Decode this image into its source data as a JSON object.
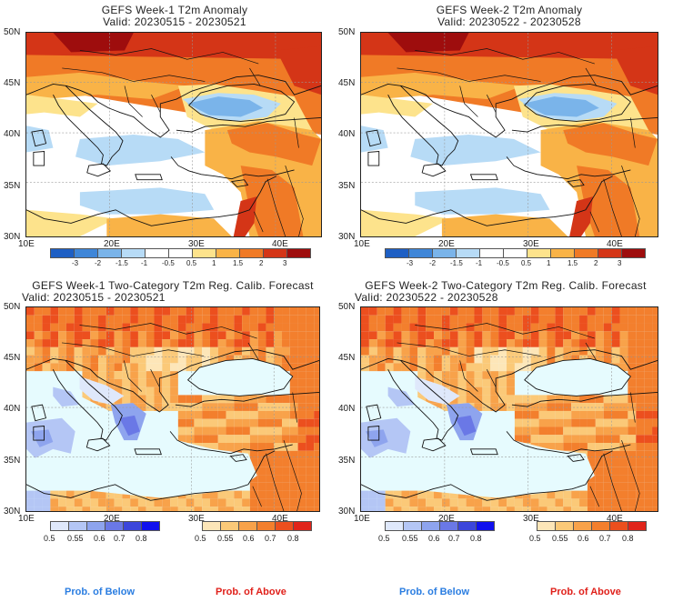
{
  "panels": [
    {
      "title": "GEFS Week-1 T2m Anomaly",
      "valid": "Valid: 20230515 - 20230521"
    },
    {
      "title": "GEFS Week-2 T2m Anomaly",
      "valid": "Valid: 20230522 - 20230528"
    },
    {
      "title": "GEFS Week-1 Two-Category T2m Reg. Calib. Forecast",
      "valid": "Valid: 20230515 - 20230521"
    },
    {
      "title": "GEFS Week-2 Two-Category T2m Reg. Calib. Forecast",
      "valid": "Valid: 20230522 - 20230528"
    }
  ],
  "lat_labels": [
    "50N",
    "45N",
    "40N",
    "35N",
    "30N"
  ],
  "lon_labels": [
    "10E",
    "20E",
    "30E",
    "40E"
  ],
  "anomaly_scale": {
    "labels": [
      "-3",
      "-2",
      "-1.5",
      "-1",
      "-0.5",
      "0.5",
      "1",
      "1.5",
      "2",
      "3"
    ],
    "colors": [
      "#1e5fc4",
      "#3f86d8",
      "#7ab4ea",
      "#b7dbf6",
      "#ffffff",
      "#ffffff",
      "#fde38c",
      "#f9b347",
      "#f07a26",
      "#d43517",
      "#9e0d0d"
    ]
  },
  "prob_below_scale": {
    "labels": [
      "0.5",
      "0.55",
      "0.6",
      "0.7",
      "0.8"
    ],
    "colors": [
      "#dfe8fb",
      "#b4c6f5",
      "#8ea4ee",
      "#6a78e6",
      "#3c46db",
      "#1010ee"
    ]
  },
  "prob_above_scale": {
    "labels": [
      "0.5",
      "0.55",
      "0.6",
      "0.7",
      "0.8"
    ],
    "colors": [
      "#fde6b8",
      "#fbc978",
      "#f8a24a",
      "#f37f2d",
      "#ec4f1e",
      "#e0241a"
    ]
  },
  "legend": {
    "below": "Prob. of Below",
    "above": "Prob. of Above"
  },
  "colors": {
    "below_text": "#2a7de1",
    "above_text": "#e0201a",
    "sea": "#e6fbfe"
  }
}
